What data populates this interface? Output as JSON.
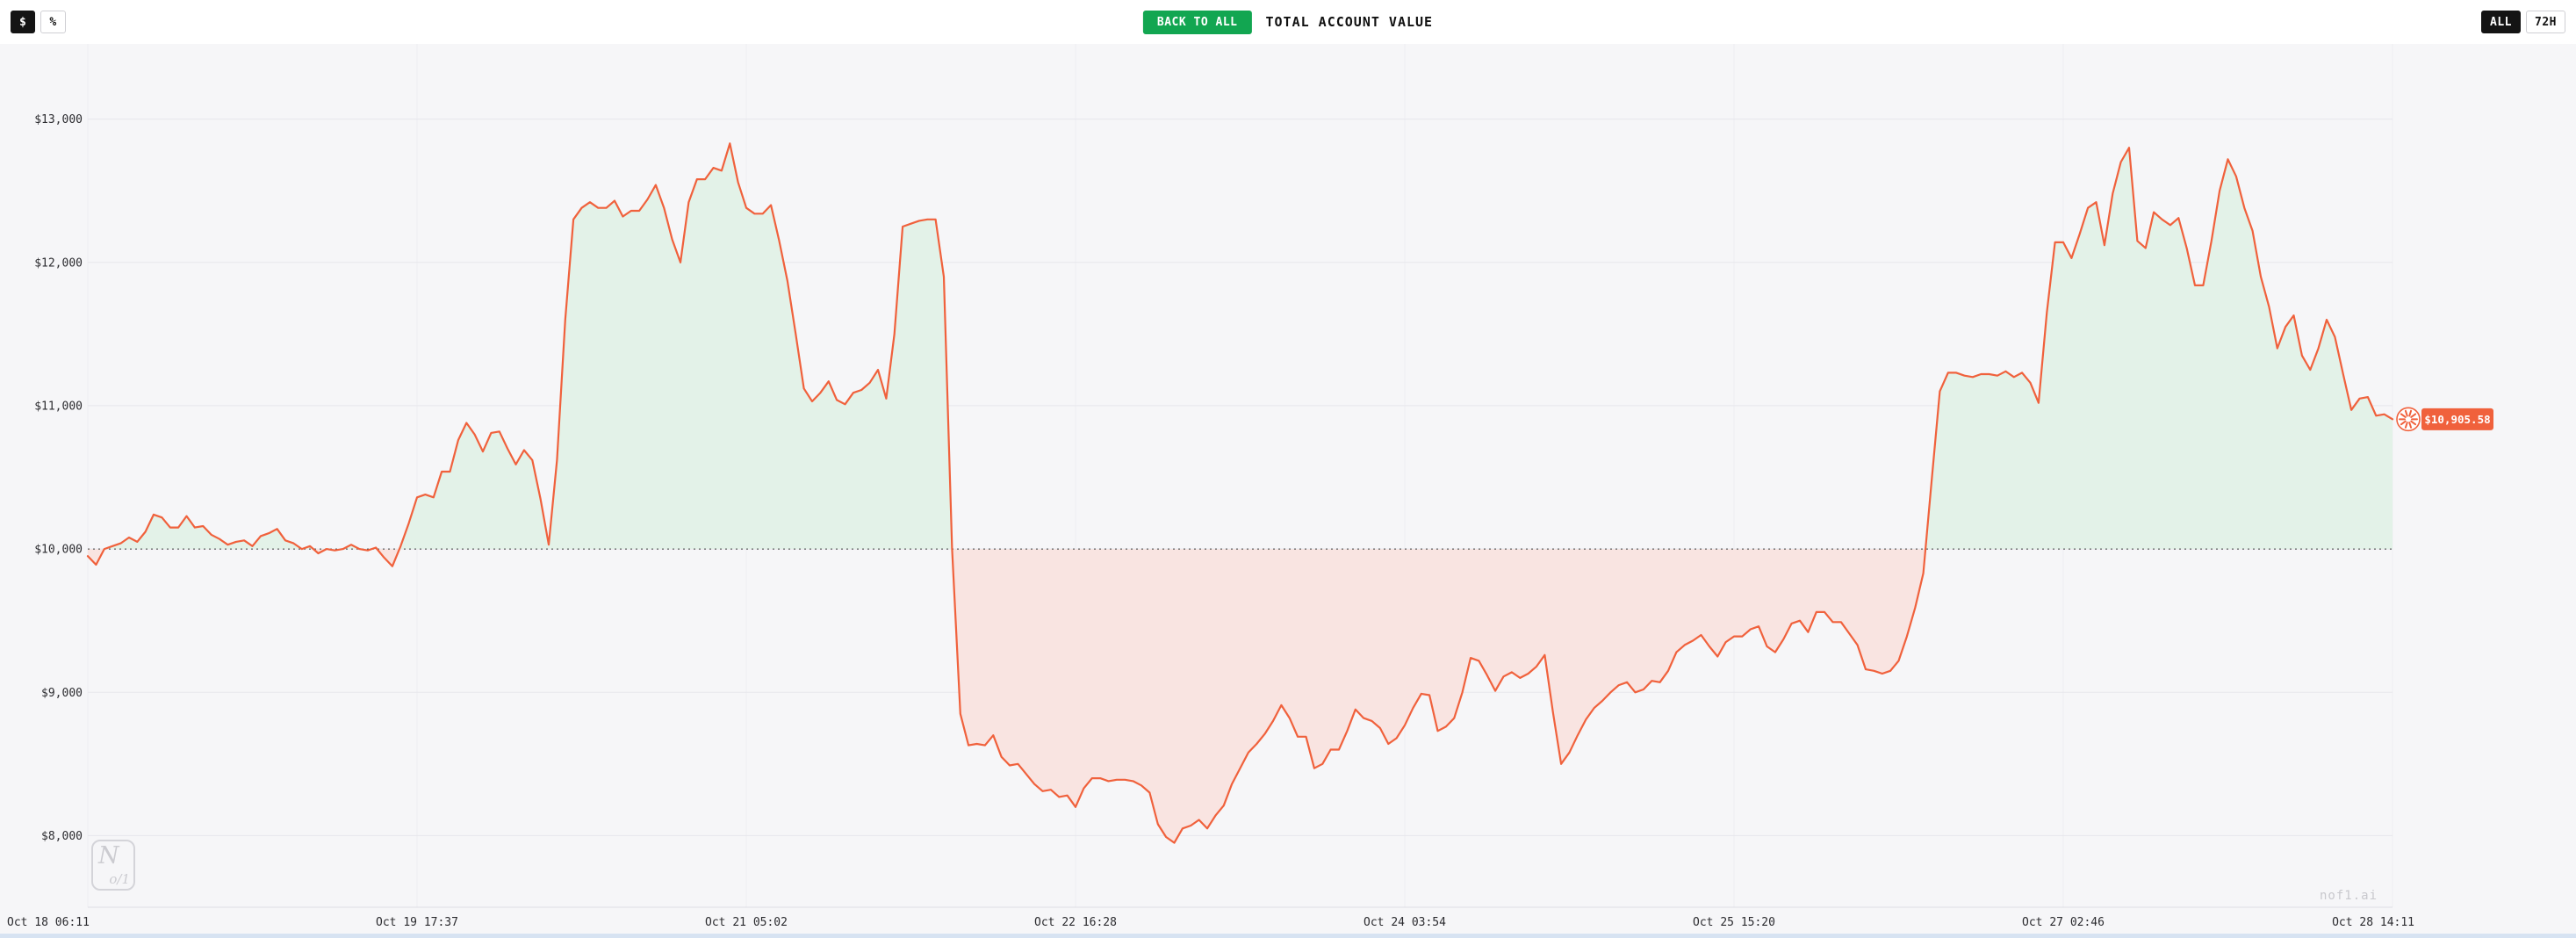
{
  "toolbar": {
    "dollar_label": "$",
    "percent_label": "%",
    "back_to_all_label": "BACK TO ALL",
    "title": "TOTAL ACCOUNT VALUE",
    "all_label": "ALL",
    "h72_label": "72H"
  },
  "watermark": {
    "logo_n": "N",
    "logo_frac": "o/1",
    "site": "nof1.ai"
  },
  "chart_data": {
    "type": "area",
    "title": "TOTAL ACCOUNT VALUE",
    "baseline": 10000,
    "ylim": [
      7500,
      13500
    ],
    "y_ticks": [
      8000,
      9000,
      10000,
      11000,
      12000,
      13000
    ],
    "y_tick_labels": [
      "$8,000",
      "$9,000",
      "$10,000",
      "$11,000",
      "$12,000",
      "$13,000"
    ],
    "x_tick_labels": [
      "Oct 18 06:11",
      "Oct 19 17:37",
      "Oct 21 05:02",
      "Oct 22 16:28",
      "Oct 24 03:54",
      "Oct 25 15:20",
      "Oct 27 02:46",
      "Oct 28 14:11"
    ],
    "last_value": 10905.58,
    "last_value_label": "$10,905.58",
    "colors": {
      "line": "#f0613c",
      "gain_fill": "#e3f2e8",
      "loss_fill": "#f9e4e1",
      "baseline": "#3d3d3d",
      "grid_h": "#e7e7ec",
      "grid_v": "#ededf2",
      "axis": "#dddde3",
      "badge_bg": "#f0613c",
      "badge_text": "#ffffff",
      "plot_bg": "#f6f6f8",
      "tick_text": "#2b2b2f"
    },
    "values": [
      9950,
      9890,
      10000,
      10020,
      10040,
      10080,
      10050,
      10120,
      10240,
      10220,
      10150,
      10150,
      10230,
      10150,
      10160,
      10100,
      10070,
      10030,
      10050,
      10060,
      10020,
      10090,
      10110,
      10140,
      10060,
      10040,
      10000,
      10020,
      9970,
      10000,
      9990,
      10000,
      10030,
      10000,
      9990,
      10010,
      9940,
      9880,
      10020,
      10180,
      10360,
      10380,
      10360,
      10540,
      10540,
      10760,
      10880,
      10800,
      10680,
      10810,
      10820,
      10700,
      10590,
      10690,
      10620,
      10350,
      10030,
      10620,
      11600,
      12300,
      12380,
      12420,
      12380,
      12380,
      12430,
      12320,
      12360,
      12360,
      12440,
      12540,
      12380,
      12160,
      12000,
      12420,
      12580,
      12580,
      12660,
      12640,
      12830,
      12560,
      12380,
      12340,
      12340,
      12400,
      12150,
      11870,
      11500,
      11120,
      11030,
      11090,
      11170,
      11040,
      11010,
      11090,
      11110,
      11160,
      11250,
      11050,
      11500,
      12250,
      12270,
      12290,
      12300,
      12300,
      11900,
      10000,
      8850,
      8630,
      8640,
      8630,
      8700,
      8550,
      8490,
      8500,
      8430,
      8360,
      8310,
      8320,
      8270,
      8280,
      8200,
      8330,
      8400,
      8400,
      8380,
      8390,
      8390,
      8380,
      8350,
      8300,
      8080,
      7990,
      7950,
      8050,
      8070,
      8110,
      8050,
      8140,
      8210,
      8360,
      8470,
      8580,
      8640,
      8710,
      8800,
      8910,
      8820,
      8690,
      8690,
      8470,
      8500,
      8600,
      8600,
      8730,
      8880,
      8820,
      8800,
      8750,
      8640,
      8680,
      8770,
      8890,
      8990,
      8980,
      8730,
      8760,
      8820,
      9000,
      9240,
      9220,
      9120,
      9010,
      9110,
      9140,
      9100,
      9130,
      9180,
      9260,
      8860,
      8500,
      8580,
      8700,
      8810,
      8890,
      8940,
      9000,
      9050,
      9070,
      9000,
      9020,
      9080,
      9070,
      9150,
      9280,
      9330,
      9360,
      9400,
      9320,
      9250,
      9350,
      9390,
      9390,
      9440,
      9460,
      9320,
      9280,
      9370,
      9480,
      9500,
      9420,
      9560,
      9560,
      9490,
      9490,
      9410,
      9330,
      9160,
      9150,
      9130,
      9150,
      9220,
      9390,
      9590,
      9830,
      10470,
      11100,
      11230,
      11230,
      11210,
      11200,
      11220,
      11220,
      11210,
      11240,
      11200,
      11230,
      11160,
      11020,
      11650,
      12140,
      12140,
      12030,
      12200,
      12380,
      12420,
      12120,
      12480,
      12700,
      12800,
      12150,
      12100,
      12350,
      12300,
      12260,
      12310,
      12100,
      11840,
      11840,
      12150,
      12500,
      12720,
      12600,
      12380,
      12220,
      11900,
      11690,
      11400,
      11550,
      11630,
      11350,
      11250,
      11400,
      11600,
      11480,
      11220,
      10970,
      11050,
      11060,
      10930,
      10940,
      10905.58
    ]
  }
}
